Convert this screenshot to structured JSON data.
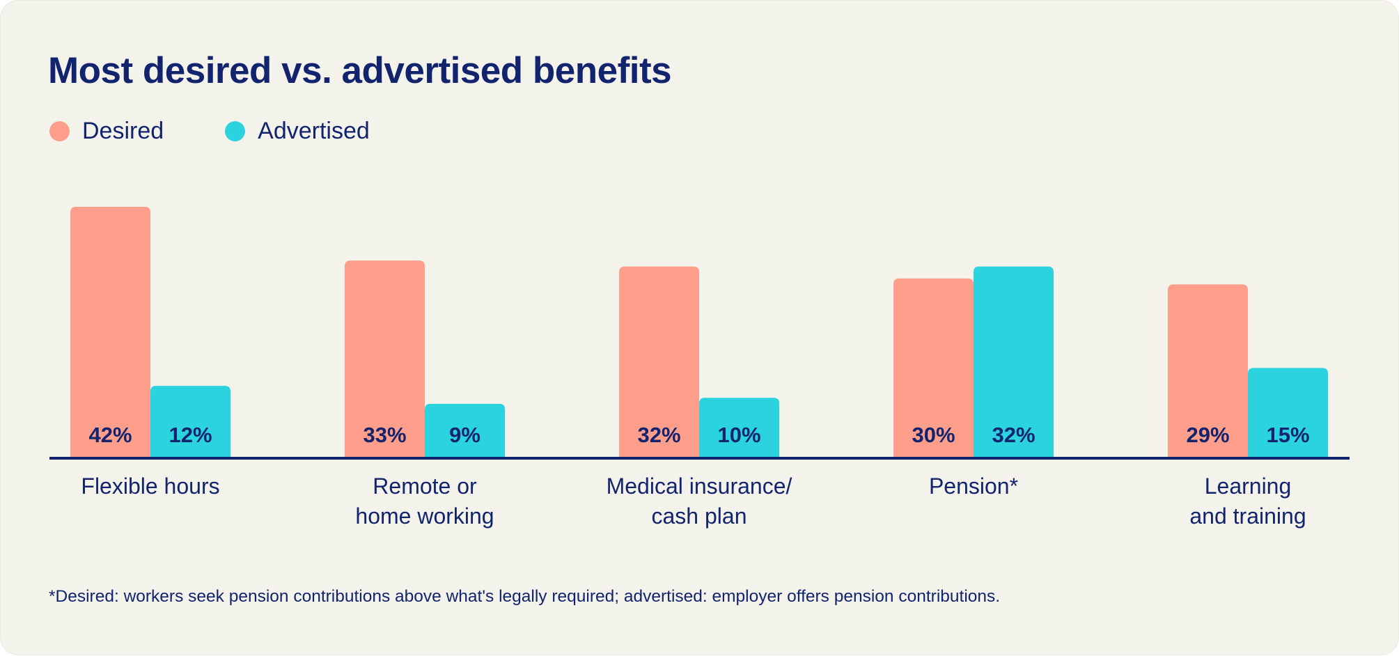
{
  "chart_data": {
    "type": "bar",
    "title": "Most desired vs. advertised benefits",
    "categories": [
      "Flexible hours",
      "Remote or home working",
      "Medical insurance/ cash plan",
      "Pension*",
      "Learning and training"
    ],
    "category_lines": [
      [
        "Flexible hours"
      ],
      [
        "Remote or",
        "home working"
      ],
      [
        "Medical insurance/",
        "cash plan"
      ],
      [
        "Pension*"
      ],
      [
        "Learning",
        "and training"
      ]
    ],
    "series": [
      {
        "name": "Desired",
        "values": [
          42,
          33,
          32,
          30,
          29
        ],
        "labels": [
          "42%",
          "33%",
          "32%",
          "30%",
          "29%"
        ],
        "color": "#ff9f8b"
      },
      {
        "name": "Advertised",
        "values": [
          12,
          9,
          10,
          32,
          15
        ],
        "labels": [
          "12%",
          "9%",
          "10%",
          "32%",
          "15%"
        ],
        "color": "#2bd3de"
      }
    ],
    "ylim": [
      0,
      42
    ],
    "unit": "%",
    "grid": false,
    "legend_position": "top-left",
    "footnote": "*Desired: workers seek pension contributions above what's legally required; advertised: employer offers pension contributions."
  },
  "colors": {
    "text": "#13246e",
    "background": "#f3f2eb",
    "axis": "#13246e"
  }
}
